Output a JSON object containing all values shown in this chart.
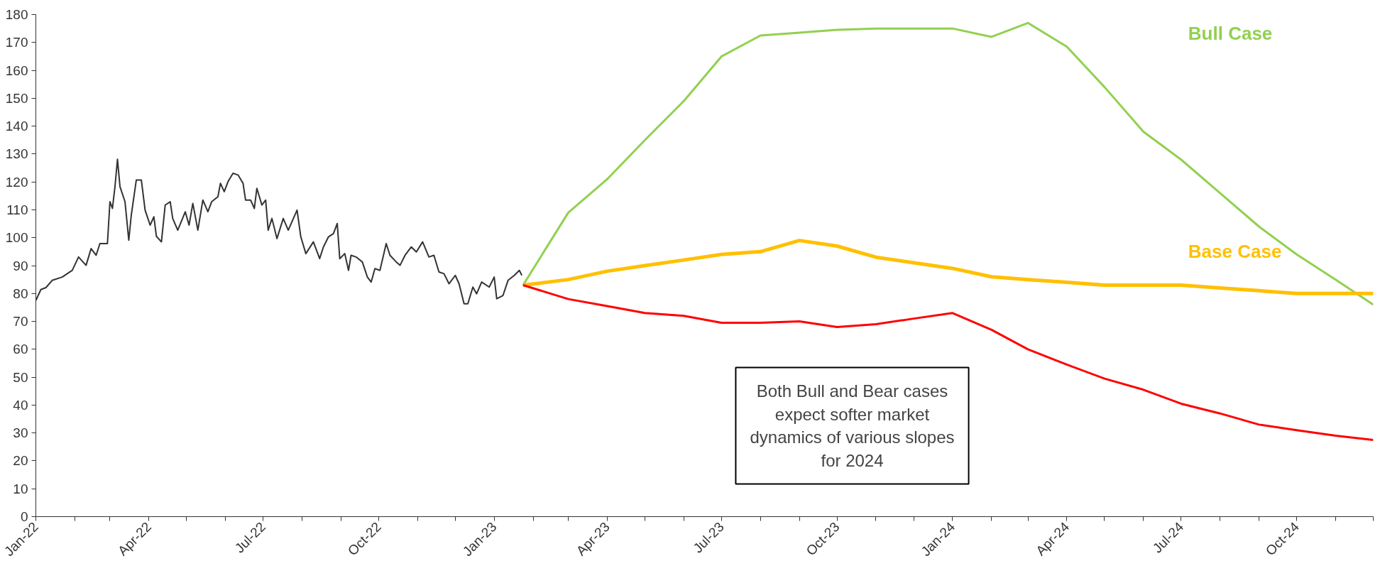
{
  "chart_data": {
    "type": "line",
    "annotations": [
      "Both Bull and Bear cases\nexpect softer market\ndynamics of various slopes\nfor 2024"
    ],
    "xlim": [
      "2022-01-01",
      "2024-12-01"
    ],
    "xticks": [
      {
        "value": "2022-01",
        "label": "Jan-22"
      },
      {
        "value": "2022-02",
        "label": null
      },
      {
        "value": "2022-03",
        "label": null
      },
      {
        "value": "2022-04",
        "label": "Apr-22"
      },
      {
        "value": "2022-05",
        "label": null
      },
      {
        "value": "2022-06",
        "label": null
      },
      {
        "value": "2022-07",
        "label": "Jul-22"
      },
      {
        "value": "2022-08",
        "label": null
      },
      {
        "value": "2022-09",
        "label": null
      },
      {
        "value": "2022-10",
        "label": "Oct-22"
      },
      {
        "value": "2022-11",
        "label": null
      },
      {
        "value": "2022-12",
        "label": null
      },
      {
        "value": "2023-01",
        "label": "Jan-23"
      },
      {
        "value": "2023-02",
        "label": null
      },
      {
        "value": "2023-03",
        "label": null
      },
      {
        "value": "2023-04",
        "label": "Apr-23"
      },
      {
        "value": "2023-05",
        "label": null
      },
      {
        "value": "2023-06",
        "label": null
      },
      {
        "value": "2023-07",
        "label": "Jul-23"
      },
      {
        "value": "2023-08",
        "label": null
      },
      {
        "value": "2023-09",
        "label": null
      },
      {
        "value": "2023-10",
        "label": "Oct-23"
      },
      {
        "value": "2023-11",
        "label": null
      },
      {
        "value": "2023-12",
        "label": null
      },
      {
        "value": "2024-01",
        "label": "Jan-24"
      },
      {
        "value": "2024-02",
        "label": null
      },
      {
        "value": "2024-03",
        "label": null
      },
      {
        "value": "2024-04",
        "label": "Apr-24"
      },
      {
        "value": "2024-05",
        "label": null
      },
      {
        "value": "2024-06",
        "label": null
      },
      {
        "value": "2024-07",
        "label": "Jul-24"
      },
      {
        "value": "2024-08",
        "label": null
      },
      {
        "value": "2024-09",
        "label": null
      },
      {
        "value": "2024-10",
        "label": "Oct-24"
      },
      {
        "value": "2024-11",
        "label": null
      },
      {
        "value": "2024-12",
        "label": null
      }
    ],
    "ylim": [
      0,
      180
    ],
    "yticks": [
      0,
      10,
      20,
      30,
      40,
      50,
      60,
      70,
      80,
      90,
      100,
      110,
      120,
      130,
      140,
      150,
      160,
      170,
      180
    ],
    "grid": false,
    "legend": false,
    "line_style": "solid",
    "series": [
      {
        "color": "#333333",
        "x": [
          "2022-01-01",
          "2022-01-05",
          "2022-01-09",
          "2022-01-14",
          "2022-01-22",
          "2022-01-30",
          "2022-02-04",
          "2022-02-10",
          "2022-02-14",
          "2022-02-18",
          "2022-02-21",
          "2022-02-27",
          "2022-03-01",
          "2022-03-03",
          "2022-03-05",
          "2022-03-07",
          "2022-03-09",
          "2022-03-13",
          "2022-03-16",
          "2022-03-18",
          "2022-03-22",
          "2022-03-26",
          "2022-03-29",
          "2022-04-02",
          "2022-04-05",
          "2022-04-07",
          "2022-04-11",
          "2022-04-14",
          "2022-04-18",
          "2022-04-20",
          "2022-04-24",
          "2022-04-30",
          "2022-05-03",
          "2022-05-06",
          "2022-05-10",
          "2022-05-14",
          "2022-05-18",
          "2022-05-21",
          "2022-05-26",
          "2022-05-28",
          "2022-05-31",
          "2022-06-03",
          "2022-06-07",
          "2022-06-11",
          "2022-06-15",
          "2022-06-17",
          "2022-06-21",
          "2022-06-24",
          "2022-06-26",
          "2022-06-30",
          "2022-07-03",
          "2022-07-05",
          "2022-07-08",
          "2022-07-12",
          "2022-07-17",
          "2022-07-21",
          "2022-07-28",
          "2022-07-31",
          "2022-08-04",
          "2022-08-10",
          "2022-08-15",
          "2022-08-18",
          "2022-08-22",
          "2022-08-26",
          "2022-08-29",
          "2022-08-31",
          "2022-09-04",
          "2022-09-07",
          "2022-09-09",
          "2022-09-13",
          "2022-09-18",
          "2022-09-22",
          "2022-09-25",
          "2022-09-28",
          "2022-10-02",
          "2022-10-07",
          "2022-10-10",
          "2022-10-15",
          "2022-10-18",
          "2022-10-22",
          "2022-10-27",
          "2022-10-31",
          "2022-11-05",
          "2022-11-10",
          "2022-11-14",
          "2022-11-18",
          "2022-11-22",
          "2022-11-26",
          "2022-12-01",
          "2022-12-04",
          "2022-12-08",
          "2022-12-11",
          "2022-12-15",
          "2022-12-18",
          "2022-12-22",
          "2022-12-28",
          "2023-01-01",
          "2023-01-03",
          "2023-01-08",
          "2023-01-12",
          "2023-01-17",
          "2023-01-21",
          "2023-01-23"
        ],
        "values": [
          77.5,
          81.4,
          82.1,
          84.7,
          85.9,
          88.3,
          93.1,
          90.1,
          96.1,
          93.7,
          97.9,
          97.9,
          112.9,
          110.5,
          118.3,
          128.1,
          118.3,
          112.9,
          99.1,
          108.1,
          120.7,
          120.7,
          109.9,
          104.5,
          107.5,
          100.5,
          98.5,
          111.7,
          112.9,
          106.9,
          102.7,
          109.3,
          104.5,
          112.3,
          102.7,
          113.5,
          109.3,
          112.9,
          114.7,
          119.5,
          116.5,
          120.1,
          123.1,
          122.5,
          119.5,
          113.5,
          113.5,
          110.5,
          117.7,
          111.7,
          113.5,
          102.7,
          106.9,
          99.7,
          106.9,
          102.7,
          109.9,
          100.3,
          94.3,
          98.5,
          92.5,
          96.7,
          100.3,
          101.5,
          105.1,
          92.5,
          94.3,
          88.3,
          93.7,
          93.1,
          91.3,
          85.9,
          84.1,
          88.9,
          88.3,
          97.9,
          93.7,
          91.3,
          90.1,
          93.7,
          96.7,
          94.9,
          98.5,
          93.1,
          93.7,
          87.7,
          87.1,
          83.5,
          86.5,
          83.5,
          76.3,
          76.3,
          82.3,
          79.9,
          84.1,
          82.3,
          85.9,
          78.1,
          79.3,
          84.7,
          86.5,
          88.3,
          86.5
        ]
      },
      {
        "name": "Bull Case",
        "color": "#92d050",
        "x": [
          "2023-01-24",
          "2023-03-01",
          "2023-04-01",
          "2023-05-01",
          "2023-06-01",
          "2023-07-01",
          "2023-08-01",
          "2023-09-01",
          "2023-10-01",
          "2023-11-01",
          "2023-12-01",
          "2024-01-01",
          "2024-02-01",
          "2024-03-01",
          "2024-04-01",
          "2024-05-01",
          "2024-06-01",
          "2024-07-01",
          "2024-08-01",
          "2024-09-01",
          "2024-10-01",
          "2024-11-01",
          "2024-12-01"
        ],
        "values": [
          83,
          109,
          121,
          135,
          149,
          165,
          172.5,
          173.5,
          174.5,
          175,
          175,
          175,
          172,
          177,
          168.5,
          154,
          138,
          128,
          116,
          104,
          94,
          85,
          76
        ]
      },
      {
        "name": "Base Case",
        "color": "#ffc000",
        "x": [
          "2023-01-24",
          "2023-03-01",
          "2023-04-01",
          "2023-05-01",
          "2023-06-01",
          "2023-07-01",
          "2023-08-01",
          "2023-09-01",
          "2023-10-01",
          "2023-11-01",
          "2023-12-01",
          "2024-01-01",
          "2024-02-01",
          "2024-03-01",
          "2024-04-01",
          "2024-05-01",
          "2024-06-01",
          "2024-07-01",
          "2024-08-01",
          "2024-09-01",
          "2024-10-01",
          "2024-11-01",
          "2024-12-01"
        ],
        "values": [
          83,
          85,
          88,
          90,
          92,
          94,
          95,
          99,
          97,
          93,
          91,
          89,
          86,
          85,
          84,
          83,
          83,
          83,
          82,
          81,
          80,
          80,
          80
        ]
      },
      {
        "color": "#ff0000",
        "x": [
          "2023-01-24",
          "2023-03-01",
          "2023-04-01",
          "2023-05-01",
          "2023-06-01",
          "2023-07-01",
          "2023-08-01",
          "2023-09-01",
          "2023-10-01",
          "2023-11-01",
          "2023-12-01",
          "2024-01-01",
          "2024-02-01",
          "2024-03-01",
          "2024-04-01",
          "2024-05-01",
          "2024-06-01",
          "2024-07-01",
          "2024-08-01",
          "2024-09-01",
          "2024-10-01",
          "2024-11-01",
          "2024-12-01"
        ],
        "values": [
          83,
          78,
          75.5,
          73,
          72,
          69.5,
          69.5,
          70,
          68,
          69,
          71,
          73,
          67,
          60,
          54.5,
          49.5,
          45.5,
          40.5,
          37,
          33,
          31,
          29,
          27.5
        ]
      }
    ]
  }
}
